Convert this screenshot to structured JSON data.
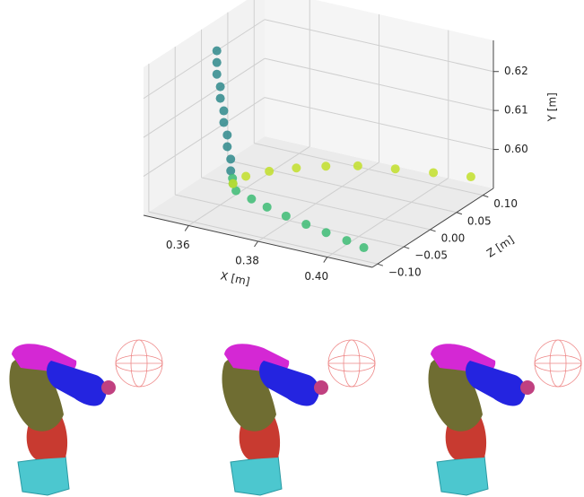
{
  "chart_data": {
    "type": "scatter3d",
    "xlabel": "X [m]",
    "ylabel": "Y [m]",
    "zlabel": "Z [m]",
    "xlim": [
      0.347,
      0.413
    ],
    "zlim": [
      -0.11,
      0.12
    ],
    "ylim": [
      0.59,
      0.628
    ],
    "xticks": [
      0.36,
      0.38,
      {
        "value": 0.4,
        "label": "0.40"
      }
    ],
    "zticks": [
      {
        "value": -0.1,
        "label": "−0.10"
      },
      {
        "value": -0.05,
        "label": "−0.05"
      },
      {
        "value": 0,
        "label": "0.00"
      },
      {
        "value": 0.05,
        "label": "0.05"
      },
      {
        "value": 0.1,
        "label": "0.10"
      }
    ],
    "yticks": [
      {
        "value": 0.6,
        "label": "0.60"
      },
      0.61,
      0.62
    ],
    "grid": true,
    "series": [
      {
        "color": "#2f8a8c",
        "x": [
          0.356,
          0.356,
          0.356,
          0.357,
          0.357,
          0.358,
          0.358,
          0.359,
          0.359,
          0.36,
          0.36
        ],
        "z": [
          -0.03,
          -0.03,
          -0.03,
          -0.03,
          -0.03,
          -0.03,
          -0.03,
          -0.03,
          -0.03,
          -0.03,
          -0.03
        ],
        "y": [
          0.627,
          0.624,
          0.621,
          0.618,
          0.615,
          0.612,
          0.609,
          0.606,
          0.603,
          0.6,
          0.597
        ]
      },
      {
        "color": "#3dbc74",
        "x": [
          0.359,
          0.357,
          0.36,
          0.366,
          0.372,
          0.379,
          0.386,
          0.393,
          0.4,
          0.406
        ],
        "z": [
          -0.02,
          -0.006,
          -0.02,
          -0.03,
          -0.04,
          -0.05,
          -0.058,
          -0.066,
          -0.073,
          -0.08
        ],
        "y": [
          0.594,
          0.591,
          0.591,
          0.591,
          0.591,
          0.591,
          0.591,
          0.591,
          0.591,
          0.591
        ]
      },
      {
        "color": "#c2df2a",
        "x": [
          0.357,
          0.358,
          0.362,
          0.368,
          0.375,
          0.383,
          0.392,
          0.401,
          0.41
        ],
        "z": [
          -0.006,
          0.012,
          0.03,
          0.042,
          0.052,
          0.06,
          0.072,
          0.085,
          0.097
        ],
        "y": [
          0.591,
          0.5915,
          0.592,
          0.593,
          0.594,
          0.595,
          0.595,
          0.5947,
          0.5944
        ]
      }
    ]
  }
}
